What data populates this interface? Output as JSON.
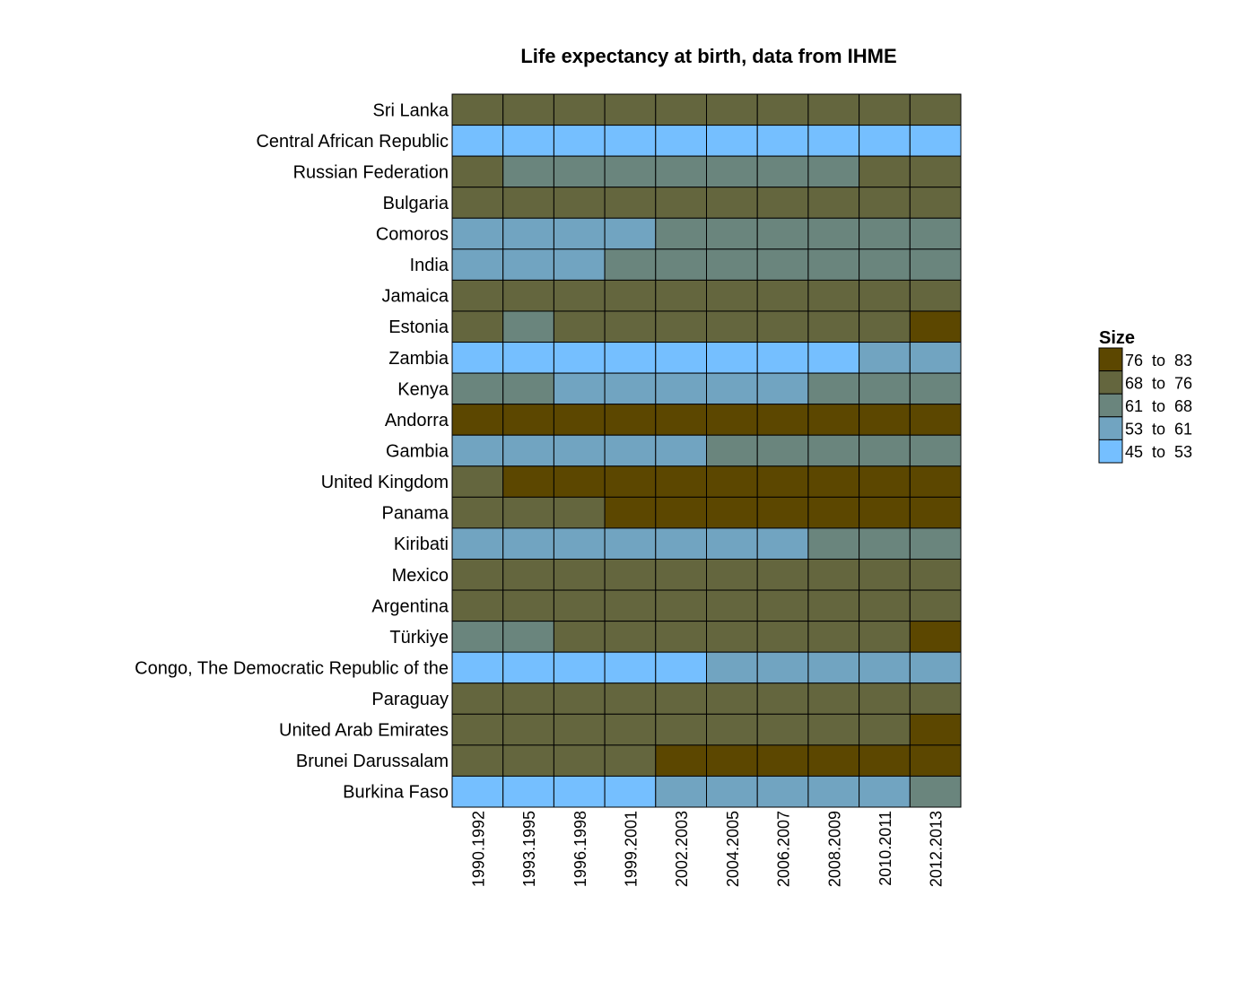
{
  "chart_data": {
    "type": "heatmap",
    "title": "Life expectancy at birth, data from IHME",
    "columns": [
      "1990.1992",
      "1993.1995",
      "1996.1998",
      "1999.2001",
      "2002.2003",
      "2004.2005",
      "2006.2007",
      "2008.2009",
      "2010.2011",
      "2012.2013"
    ],
    "rows": [
      "Sri Lanka",
      "Central African Republic",
      "Russian Federation",
      "Bulgaria",
      "Comoros",
      "India",
      "Jamaica",
      "Estonia",
      "Zambia",
      "Kenya",
      "Andorra",
      "Gambia",
      "United Kingdom",
      "Panama",
      "Kiribati",
      "Mexico",
      "Argentina",
      "Türkiye",
      "Congo, The Democratic Republic of the",
      "Paraguay",
      "United Arab Emirates",
      "Brunei Darussalam",
      "Burkina Faso"
    ],
    "bins": [
      {
        "label": "76  to  83",
        "color": "#5c4700"
      },
      {
        "label": "68  to  76",
        "color": "#64663e"
      },
      {
        "label": "61  to  68",
        "color": "#6a857d"
      },
      {
        "label": "53  to  61",
        "color": "#71a4c1"
      },
      {
        "label": "45  to  53",
        "color": "#75bfff"
      }
    ],
    "cell_bins": [
      [
        1,
        1,
        1,
        1,
        1,
        1,
        1,
        1,
        1,
        1
      ],
      [
        4,
        4,
        4,
        4,
        4,
        4,
        4,
        4,
        4,
        4
      ],
      [
        1,
        2,
        2,
        2,
        2,
        2,
        2,
        2,
        1,
        1
      ],
      [
        1,
        1,
        1,
        1,
        1,
        1,
        1,
        1,
        1,
        1
      ],
      [
        3,
        3,
        3,
        3,
        2,
        2,
        2,
        2,
        2,
        2
      ],
      [
        3,
        3,
        3,
        2,
        2,
        2,
        2,
        2,
        2,
        2
      ],
      [
        1,
        1,
        1,
        1,
        1,
        1,
        1,
        1,
        1,
        1
      ],
      [
        1,
        2,
        1,
        1,
        1,
        1,
        1,
        1,
        1,
        0
      ],
      [
        4,
        4,
        4,
        4,
        4,
        4,
        4,
        4,
        3,
        3
      ],
      [
        2,
        2,
        3,
        3,
        3,
        3,
        3,
        2,
        2,
        2
      ],
      [
        0,
        0,
        0,
        0,
        0,
        0,
        0,
        0,
        0,
        0
      ],
      [
        3,
        3,
        3,
        3,
        3,
        2,
        2,
        2,
        2,
        2
      ],
      [
        1,
        0,
        0,
        0,
        0,
        0,
        0,
        0,
        0,
        0
      ],
      [
        1,
        1,
        1,
        0,
        0,
        0,
        0,
        0,
        0,
        0
      ],
      [
        3,
        3,
        3,
        3,
        3,
        3,
        3,
        2,
        2,
        2
      ],
      [
        1,
        1,
        1,
        1,
        1,
        1,
        1,
        1,
        1,
        1
      ],
      [
        1,
        1,
        1,
        1,
        1,
        1,
        1,
        1,
        1,
        1
      ],
      [
        2,
        2,
        1,
        1,
        1,
        1,
        1,
        1,
        1,
        0
      ],
      [
        4,
        4,
        4,
        4,
        4,
        3,
        3,
        3,
        3,
        3
      ],
      [
        1,
        1,
        1,
        1,
        1,
        1,
        1,
        1,
        1,
        1
      ],
      [
        1,
        1,
        1,
        1,
        1,
        1,
        1,
        1,
        1,
        0
      ],
      [
        1,
        1,
        1,
        1,
        0,
        0,
        0,
        0,
        0,
        0
      ],
      [
        4,
        4,
        4,
        4,
        3,
        3,
        3,
        3,
        3,
        2
      ]
    ],
    "legend": {
      "title": "Size",
      "position": "right"
    }
  }
}
